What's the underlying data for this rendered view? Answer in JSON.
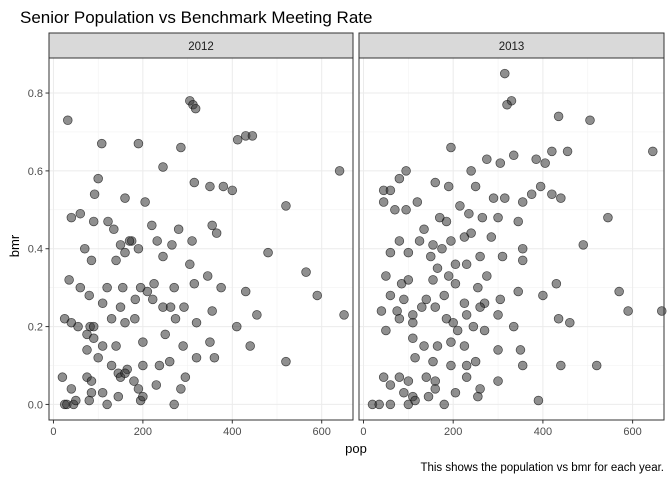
{
  "chart_data": {
    "type": "scatter",
    "title": "Senior Population vs Benchmark Meeting Rate",
    "xlabel": "pop",
    "ylabel": "bmr",
    "caption": "This shows the population vs bmr for each year.",
    "xlim": [
      -10,
      670
    ],
    "ylim": [
      -0.04,
      0.89
    ],
    "xticks": [
      0,
      200,
      400,
      600
    ],
    "yticks": [
      0.0,
      0.2,
      0.4,
      0.6,
      0.8
    ],
    "xtick_labels": [
      "0",
      "200",
      "400",
      "600"
    ],
    "ytick_labels": [
      "0.0",
      "0.2",
      "0.4",
      "0.6",
      "0.8"
    ],
    "grid": true,
    "point_color": "#333333",
    "panel_border_color": "#333333",
    "strip_color": "#d9d9d9",
    "panels": [
      {
        "label": "2012",
        "points": [
          [
            32,
            0.73
          ],
          [
            305,
            0.78
          ],
          [
            312,
            0.77
          ],
          [
            318,
            0.76
          ],
          [
            430,
            0.69
          ],
          [
            445,
            0.69
          ],
          [
            412,
            0.68
          ],
          [
            108,
            0.67
          ],
          [
            190,
            0.67
          ],
          [
            285,
            0.66
          ],
          [
            640,
            0.6
          ],
          [
            245,
            0.61
          ],
          [
            100,
            0.58
          ],
          [
            315,
            0.57
          ],
          [
            350,
            0.56
          ],
          [
            380,
            0.56
          ],
          [
            400,
            0.55
          ],
          [
            92,
            0.54
          ],
          [
            160,
            0.53
          ],
          [
            205,
            0.52
          ],
          [
            520,
            0.51
          ],
          [
            60,
            0.49
          ],
          [
            40,
            0.48
          ],
          [
            90,
            0.47
          ],
          [
            122,
            0.47
          ],
          [
            135,
            0.45
          ],
          [
            220,
            0.46
          ],
          [
            280,
            0.45
          ],
          [
            355,
            0.46
          ],
          [
            365,
            0.44
          ],
          [
            175,
            0.42
          ],
          [
            170,
            0.42
          ],
          [
            150,
            0.41
          ],
          [
            190,
            0.4
          ],
          [
            232,
            0.42
          ],
          [
            265,
            0.41
          ],
          [
            310,
            0.42
          ],
          [
            480,
            0.39
          ],
          [
            70,
            0.4
          ],
          [
            85,
            0.37
          ],
          [
            140,
            0.37
          ],
          [
            160,
            0.39
          ],
          [
            245,
            0.38
          ],
          [
            305,
            0.36
          ],
          [
            345,
            0.33
          ],
          [
            565,
            0.34
          ],
          [
            35,
            0.32
          ],
          [
            60,
            0.3
          ],
          [
            80,
            0.28
          ],
          [
            120,
            0.3
          ],
          [
            155,
            0.3
          ],
          [
            195,
            0.3
          ],
          [
            210,
            0.29
          ],
          [
            225,
            0.31
          ],
          [
            270,
            0.3
          ],
          [
            315,
            0.31
          ],
          [
            375,
            0.3
          ],
          [
            430,
            0.29
          ],
          [
            590,
            0.28
          ],
          [
            110,
            0.26
          ],
          [
            150,
            0.25
          ],
          [
            183,
            0.27
          ],
          [
            222,
            0.27
          ],
          [
            245,
            0.25
          ],
          [
            262,
            0.25
          ],
          [
            292,
            0.25
          ],
          [
            355,
            0.24
          ],
          [
            455,
            0.23
          ],
          [
            650,
            0.23
          ],
          [
            25,
            0.22
          ],
          [
            40,
            0.21
          ],
          [
            55,
            0.2
          ],
          [
            82,
            0.2
          ],
          [
            90,
            0.2
          ],
          [
            130,
            0.22
          ],
          [
            160,
            0.21
          ],
          [
            182,
            0.22
          ],
          [
            273,
            0.22
          ],
          [
            320,
            0.21
          ],
          [
            410,
            0.2
          ],
          [
            75,
            0.18
          ],
          [
            90,
            0.17
          ],
          [
            110,
            0.15
          ],
          [
            140,
            0.15
          ],
          [
            200,
            0.16
          ],
          [
            250,
            0.18
          ],
          [
            290,
            0.15
          ],
          [
            350,
            0.16
          ],
          [
            440,
            0.15
          ],
          [
            520,
            0.11
          ],
          [
            75,
            0.14
          ],
          [
            100,
            0.12
          ],
          [
            130,
            0.1
          ],
          [
            145,
            0.08
          ],
          [
            165,
            0.09
          ],
          [
            200,
            0.1
          ],
          [
            237,
            0.1
          ],
          [
            260,
            0.11
          ],
          [
            320,
            0.12
          ],
          [
            360,
            0.12
          ],
          [
            75,
            0.07
          ],
          [
            85,
            0.06
          ],
          [
            150,
            0.07
          ],
          [
            160,
            0.08
          ],
          [
            180,
            0.06
          ],
          [
            230,
            0.05
          ],
          [
            295,
            0.07
          ],
          [
            40,
            0.04
          ],
          [
            85,
            0.03
          ],
          [
            110,
            0.03
          ],
          [
            145,
            0.02
          ],
          [
            190,
            0.04
          ],
          [
            285,
            0.04
          ],
          [
            20,
            0.07
          ],
          [
            25,
            0.0
          ],
          [
            30,
            0.0
          ],
          [
            45,
            0.0
          ],
          [
            50,
            0.01
          ],
          [
            80,
            0.01
          ],
          [
            120,
            0.0
          ],
          [
            195,
            0.01
          ],
          [
            200,
            0.02
          ],
          [
            270,
            0.0
          ]
        ]
      },
      {
        "label": "2013",
        "points": [
          [
            315,
            0.85
          ],
          [
            330,
            0.78
          ],
          [
            320,
            0.77
          ],
          [
            435,
            0.74
          ],
          [
            505,
            0.73
          ],
          [
            420,
            0.65
          ],
          [
            455,
            0.65
          ],
          [
            645,
            0.65
          ],
          [
            195,
            0.66
          ],
          [
            275,
            0.63
          ],
          [
            335,
            0.64
          ],
          [
            385,
            0.63
          ],
          [
            95,
            0.6
          ],
          [
            240,
            0.6
          ],
          [
            305,
            0.62
          ],
          [
            405,
            0.62
          ],
          [
            45,
            0.55
          ],
          [
            60,
            0.55
          ],
          [
            80,
            0.58
          ],
          [
            160,
            0.57
          ],
          [
            190,
            0.56
          ],
          [
            250,
            0.56
          ],
          [
            290,
            0.53
          ],
          [
            315,
            0.53
          ],
          [
            355,
            0.52
          ],
          [
            375,
            0.54
          ],
          [
            395,
            0.56
          ],
          [
            420,
            0.54
          ],
          [
            440,
            0.53
          ],
          [
            545,
            0.48
          ],
          [
            45,
            0.52
          ],
          [
            70,
            0.5
          ],
          [
            95,
            0.5
          ],
          [
            120,
            0.52
          ],
          [
            185,
            0.47
          ],
          [
            215,
            0.51
          ],
          [
            235,
            0.49
          ],
          [
            265,
            0.48
          ],
          [
            300,
            0.48
          ],
          [
            345,
            0.47
          ],
          [
            170,
            0.48
          ],
          [
            80,
            0.42
          ],
          [
            125,
            0.42
          ],
          [
            135,
            0.45
          ],
          [
            155,
            0.41
          ],
          [
            175,
            0.4
          ],
          [
            195,
            0.42
          ],
          [
            225,
            0.43
          ],
          [
            240,
            0.44
          ],
          [
            285,
            0.43
          ],
          [
            355,
            0.4
          ],
          [
            490,
            0.41
          ],
          [
            60,
            0.39
          ],
          [
            100,
            0.39
          ],
          [
            150,
            0.38
          ],
          [
            165,
            0.35
          ],
          [
            205,
            0.36
          ],
          [
            230,
            0.36
          ],
          [
            260,
            0.38
          ],
          [
            310,
            0.38
          ],
          [
            355,
            0.37
          ],
          [
            50,
            0.33
          ],
          [
            85,
            0.31
          ],
          [
            100,
            0.32
          ],
          [
            155,
            0.32
          ],
          [
            190,
            0.33
          ],
          [
            205,
            0.31
          ],
          [
            255,
            0.3
          ],
          [
            275,
            0.33
          ],
          [
            345,
            0.29
          ],
          [
            430,
            0.31
          ],
          [
            570,
            0.29
          ],
          [
            60,
            0.28
          ],
          [
            90,
            0.27
          ],
          [
            140,
            0.27
          ],
          [
            180,
            0.28
          ],
          [
            225,
            0.26
          ],
          [
            270,
            0.26
          ],
          [
            305,
            0.27
          ],
          [
            400,
            0.28
          ],
          [
            40,
            0.24
          ],
          [
            75,
            0.24
          ],
          [
            110,
            0.23
          ],
          [
            130,
            0.25
          ],
          [
            160,
            0.25
          ],
          [
            230,
            0.23
          ],
          [
            260,
            0.25
          ],
          [
            300,
            0.23
          ],
          [
            435,
            0.22
          ],
          [
            460,
            0.21
          ],
          [
            590,
            0.24
          ],
          [
            665,
            0.24
          ],
          [
            80,
            0.22
          ],
          [
            110,
            0.21
          ],
          [
            185,
            0.22
          ],
          [
            200,
            0.21
          ],
          [
            210,
            0.19
          ],
          [
            245,
            0.2
          ],
          [
            270,
            0.19
          ],
          [
            335,
            0.2
          ],
          [
            50,
            0.19
          ],
          [
            110,
            0.17
          ],
          [
            135,
            0.15
          ],
          [
            165,
            0.15
          ],
          [
            195,
            0.16
          ],
          [
            225,
            0.15
          ],
          [
            300,
            0.14
          ],
          [
            350,
            0.14
          ],
          [
            115,
            0.12
          ],
          [
            155,
            0.11
          ],
          [
            195,
            0.1
          ],
          [
            230,
            0.1
          ],
          [
            250,
            0.11
          ],
          [
            355,
            0.1
          ],
          [
            440,
            0.1
          ],
          [
            520,
            0.1
          ],
          [
            80,
            0.07
          ],
          [
            100,
            0.06
          ],
          [
            140,
            0.07
          ],
          [
            160,
            0.06
          ],
          [
            230,
            0.07
          ],
          [
            300,
            0.06
          ],
          [
            45,
            0.07
          ],
          [
            60,
            0.05
          ],
          [
            90,
            0.03
          ],
          [
            110,
            0.02
          ],
          [
            145,
            0.02
          ],
          [
            160,
            0.04
          ],
          [
            205,
            0.03
          ],
          [
            260,
            0.04
          ],
          [
            390,
            0.01
          ],
          [
            20,
            0.0
          ],
          [
            35,
            0.0
          ],
          [
            60,
            0.0
          ],
          [
            100,
            0.0
          ],
          [
            115,
            0.01
          ],
          [
            180,
            0.0
          ],
          [
            255,
            0.02
          ]
        ]
      }
    ]
  }
}
